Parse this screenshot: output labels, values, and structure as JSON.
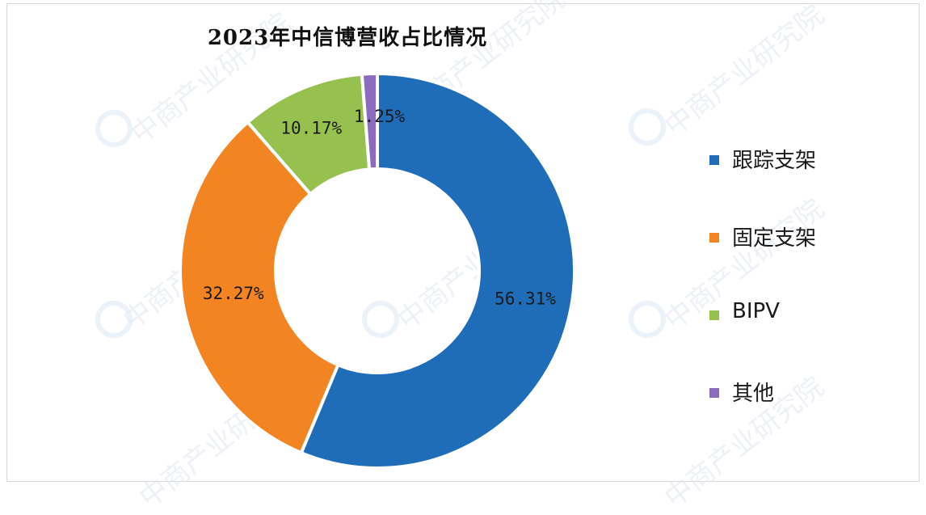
{
  "chart_data": {
    "type": "pie",
    "title": "2023年中信博营收占比情况",
    "categories": [
      "跟踪支架",
      "固定支架",
      "BIPV",
      "其他"
    ],
    "values": [
      56.31,
      32.27,
      10.17,
      1.25
    ],
    "data_labels": [
      "56.31%",
      "32.27%",
      "10.17%",
      "1.25%"
    ],
    "colors": [
      "#1f6db8",
      "#f28422",
      "#97c14f",
      "#8a6bbd"
    ],
    "legend_position": "right",
    "donut": true
  },
  "watermark": "中商产业研究院"
}
